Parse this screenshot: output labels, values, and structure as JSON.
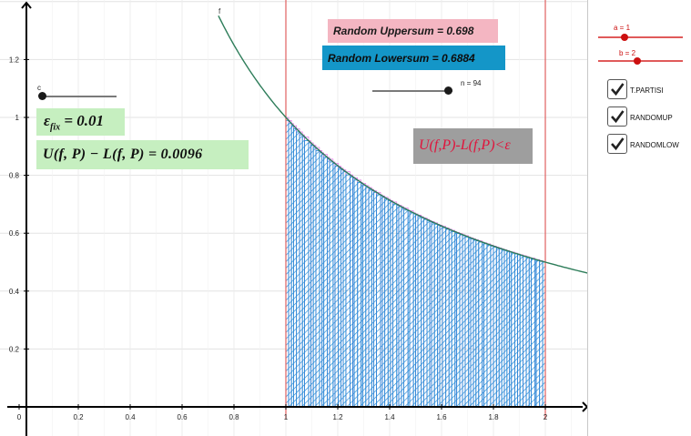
{
  "graph": {
    "x_ticks": [
      "0",
      "0.2",
      "0.4",
      "0.6",
      "0.8",
      "1",
      "1.2",
      "1.4",
      "1.6",
      "1.8",
      "2"
    ],
    "y_ticks": [
      "0.2",
      "0.4",
      "0.6",
      "0.8",
      "1",
      "1.2"
    ],
    "curve_label": "f",
    "function": "1/x",
    "a_line_x": 1,
    "b_line_x": 2,
    "n": 94,
    "colors": {
      "curve": "#2e7d5a",
      "rect_lower": "#1f8bd6",
      "rect_upper": "#e05ce0",
      "vline": "#e06060",
      "axis": "#000000",
      "grid": "#e3e3e3"
    }
  },
  "labels": {
    "upper_sum": "Random Uppersum  =  0.698",
    "lower_sum": "Random Lowersum  =  0.6884",
    "eps_sym": "ε",
    "eps_sub": "fix",
    "eps_value": " = 0.01",
    "diff": "U(f, P) − L(f, P) = 0.0096",
    "condition": "U(f,P)-L(f,P)<ε"
  },
  "sliders": {
    "c_label": "c",
    "n_label": "n = 94",
    "a_label": "a = 1",
    "b_label": "b = 2"
  },
  "checkboxes": [
    {
      "label": "T.PARTISI",
      "checked": true
    },
    {
      "label": "RANDOMUP",
      "checked": true
    },
    {
      "label": "RANDOMLOW",
      "checked": true
    }
  ]
}
